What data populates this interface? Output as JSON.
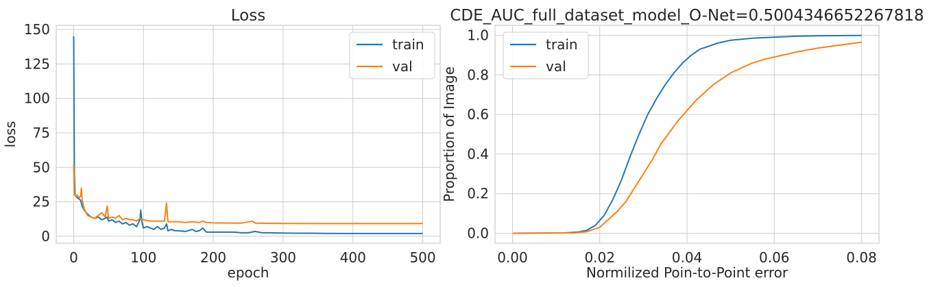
{
  "colors": {
    "train": "#1f77b4",
    "val": "#ff7f0e",
    "grid": "#cccccc"
  },
  "chart_data": [
    {
      "type": "line",
      "title": "Loss",
      "xlabel": "epoch",
      "ylabel": "loss",
      "xlim": [
        -25,
        525
      ],
      "ylim": [
        -5,
        153
      ],
      "xticks": [
        0,
        100,
        200,
        300,
        400,
        500
      ],
      "xtick_labels": [
        "0",
        "100",
        "200",
        "300",
        "400",
        "500"
      ],
      "yticks": [
        0,
        25,
        50,
        75,
        100,
        125,
        150
      ],
      "ytick_labels": [
        "0",
        "25",
        "50",
        "75",
        "100",
        "125",
        "150"
      ],
      "grid": true,
      "legend": "top-right",
      "series": [
        {
          "name": "train",
          "color": "#1f77b4",
          "x": [
            0,
            1,
            2,
            3,
            5,
            8,
            10,
            12,
            15,
            20,
            25,
            30,
            35,
            40,
            45,
            48,
            50,
            55,
            60,
            65,
            70,
            75,
            80,
            85,
            90,
            95,
            96,
            98,
            100,
            105,
            110,
            115,
            120,
            125,
            130,
            133,
            135,
            140,
            145,
            150,
            160,
            170,
            175,
            180,
            185,
            190,
            200,
            210,
            220,
            230,
            240,
            250,
            260,
            270,
            280,
            300,
            320,
            340,
            360,
            380,
            400,
            450,
            500
          ],
          "y": [
            145,
            45,
            30,
            29,
            28,
            27,
            26,
            22,
            19,
            16,
            14,
            13,
            14,
            12,
            13,
            14,
            11,
            12,
            10,
            11,
            9,
            10,
            8,
            9,
            7,
            12,
            19,
            10,
            6,
            7,
            6,
            5,
            7,
            5,
            6,
            9,
            4,
            5,
            4,
            4,
            3.5,
            5,
            3.5,
            4,
            6,
            3,
            3,
            3,
            3,
            3,
            2.5,
            2.5,
            3.5,
            2.5,
            2.5,
            2.3,
            2.2,
            2.2,
            2.1,
            2,
            2,
            2,
            2
          ]
        },
        {
          "name": "val",
          "color": "#ff7f0e",
          "x": [
            0,
            1,
            2,
            3,
            5,
            8,
            10,
            11,
            12,
            15,
            20,
            25,
            30,
            35,
            40,
            45,
            48,
            50,
            55,
            60,
            65,
            70,
            75,
            80,
            85,
            90,
            95,
            100,
            110,
            120,
            130,
            133,
            135,
            140,
            150,
            160,
            170,
            180,
            185,
            190,
            200,
            220,
            240,
            256,
            260,
            280,
            300,
            350,
            400,
            450,
            500
          ],
          "y": [
            52,
            30,
            30,
            29,
            30,
            28,
            29,
            35,
            27,
            20,
            15,
            14,
            13,
            15,
            17,
            14,
            22,
            13,
            14,
            13,
            15,
            12,
            13,
            12,
            12,
            11,
            13,
            12,
            11,
            11,
            11,
            24,
            10.5,
            10.5,
            10.5,
            10,
            10.5,
            10,
            11,
            10,
            9.7,
            9.6,
            9.5,
            11,
            9.5,
            9.4,
            9.3,
            9.2,
            9.2,
            9.2,
            9.2
          ]
        }
      ]
    },
    {
      "type": "line",
      "title": "CDE_AUC_full_dataset_model_O-Net=0.5004346652267818",
      "xlabel": "Normilized Poin-to-Point error",
      "ylabel": "Proportion of Image",
      "xlim": [
        -0.004,
        0.084
      ],
      "ylim": [
        -0.05,
        1.05
      ],
      "xticks": [
        0,
        0.02,
        0.04,
        0.06,
        0.08
      ],
      "xtick_labels": [
        "0.00",
        "0.02",
        "0.04",
        "0.06",
        "0.08"
      ],
      "yticks": [
        0,
        0.2,
        0.4,
        0.6,
        0.8,
        1.0
      ],
      "ytick_labels": [
        "0.0",
        "0.2",
        "0.4",
        "0.6",
        "0.8",
        "1.0"
      ],
      "grid": true,
      "legend": "top-left",
      "series": [
        {
          "name": "train",
          "color": "#1f77b4",
          "x": [
            0,
            0.012,
            0.015,
            0.017,
            0.019,
            0.021,
            0.023,
            0.025,
            0.027,
            0.029,
            0.031,
            0.033,
            0.035,
            0.037,
            0.039,
            0.041,
            0.043,
            0.045,
            0.047,
            0.05,
            0.055,
            0.06,
            0.065,
            0.07,
            0.075,
            0.08
          ],
          "y": [
            0,
            0.002,
            0.006,
            0.015,
            0.04,
            0.09,
            0.17,
            0.27,
            0.39,
            0.5,
            0.6,
            0.68,
            0.75,
            0.81,
            0.86,
            0.9,
            0.93,
            0.945,
            0.96,
            0.975,
            0.985,
            0.99,
            0.995,
            0.997,
            0.998,
            0.999
          ]
        },
        {
          "name": "val",
          "color": "#ff7f0e",
          "x": [
            0,
            0.014,
            0.017,
            0.02,
            0.022,
            0.024,
            0.026,
            0.028,
            0.03,
            0.032,
            0.034,
            0.036,
            0.038,
            0.04,
            0.042,
            0.044,
            0.046,
            0.048,
            0.05,
            0.052,
            0.055,
            0.058,
            0.06,
            0.065,
            0.07,
            0.075,
            0.08
          ],
          "y": [
            0,
            0.002,
            0.008,
            0.03,
            0.07,
            0.11,
            0.16,
            0.23,
            0.3,
            0.37,
            0.45,
            0.51,
            0.57,
            0.62,
            0.67,
            0.71,
            0.75,
            0.78,
            0.81,
            0.83,
            0.86,
            0.88,
            0.89,
            0.915,
            0.935,
            0.95,
            0.965
          ]
        }
      ]
    }
  ]
}
